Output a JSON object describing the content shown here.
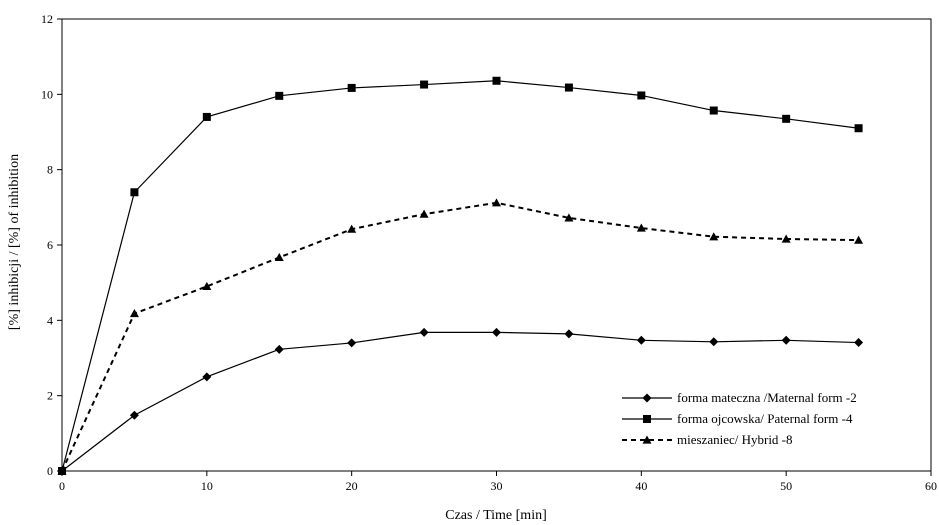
{
  "chart_data": {
    "type": "line",
    "title": "",
    "xlabel": "Czas / Time [min]",
    "ylabel": "[%] inhibicji / [%] of inhibition",
    "xlim": [
      0,
      60
    ],
    "ylim": [
      0,
      12
    ],
    "xticks": [
      0,
      10,
      20,
      30,
      40,
      50,
      60
    ],
    "yticks": [
      0,
      2,
      4,
      6,
      8,
      10,
      12
    ],
    "grid": false,
    "legend_position": "bottom-right",
    "x": [
      0,
      5,
      10,
      15,
      20,
      25,
      30,
      35,
      40,
      45,
      50,
      55
    ],
    "series": [
      {
        "name": "forma mateczna /Maternal form -2",
        "marker": "diamond",
        "line_style": "solid",
        "color": "#000000",
        "values": [
          0,
          1.48,
          2.5,
          3.23,
          3.4,
          3.68,
          3.68,
          3.64,
          3.47,
          3.43,
          3.47,
          3.41
        ]
      },
      {
        "name": "forma ojcowska/ Paternal form -4",
        "marker": "square",
        "line_style": "solid",
        "color": "#000000",
        "values": [
          0,
          7.4,
          9.4,
          9.96,
          10.17,
          10.26,
          10.36,
          10.18,
          9.97,
          9.57,
          9.35,
          9.1
        ]
      },
      {
        "name": "mieszaniec/ Hybrid -8",
        "marker": "triangle",
        "line_style": "dashed",
        "color": "#000000",
        "values": [
          0,
          4.18,
          4.9,
          5.67,
          6.42,
          6.82,
          7.12,
          6.72,
          6.45,
          6.22,
          6.16,
          6.13
        ]
      }
    ]
  }
}
